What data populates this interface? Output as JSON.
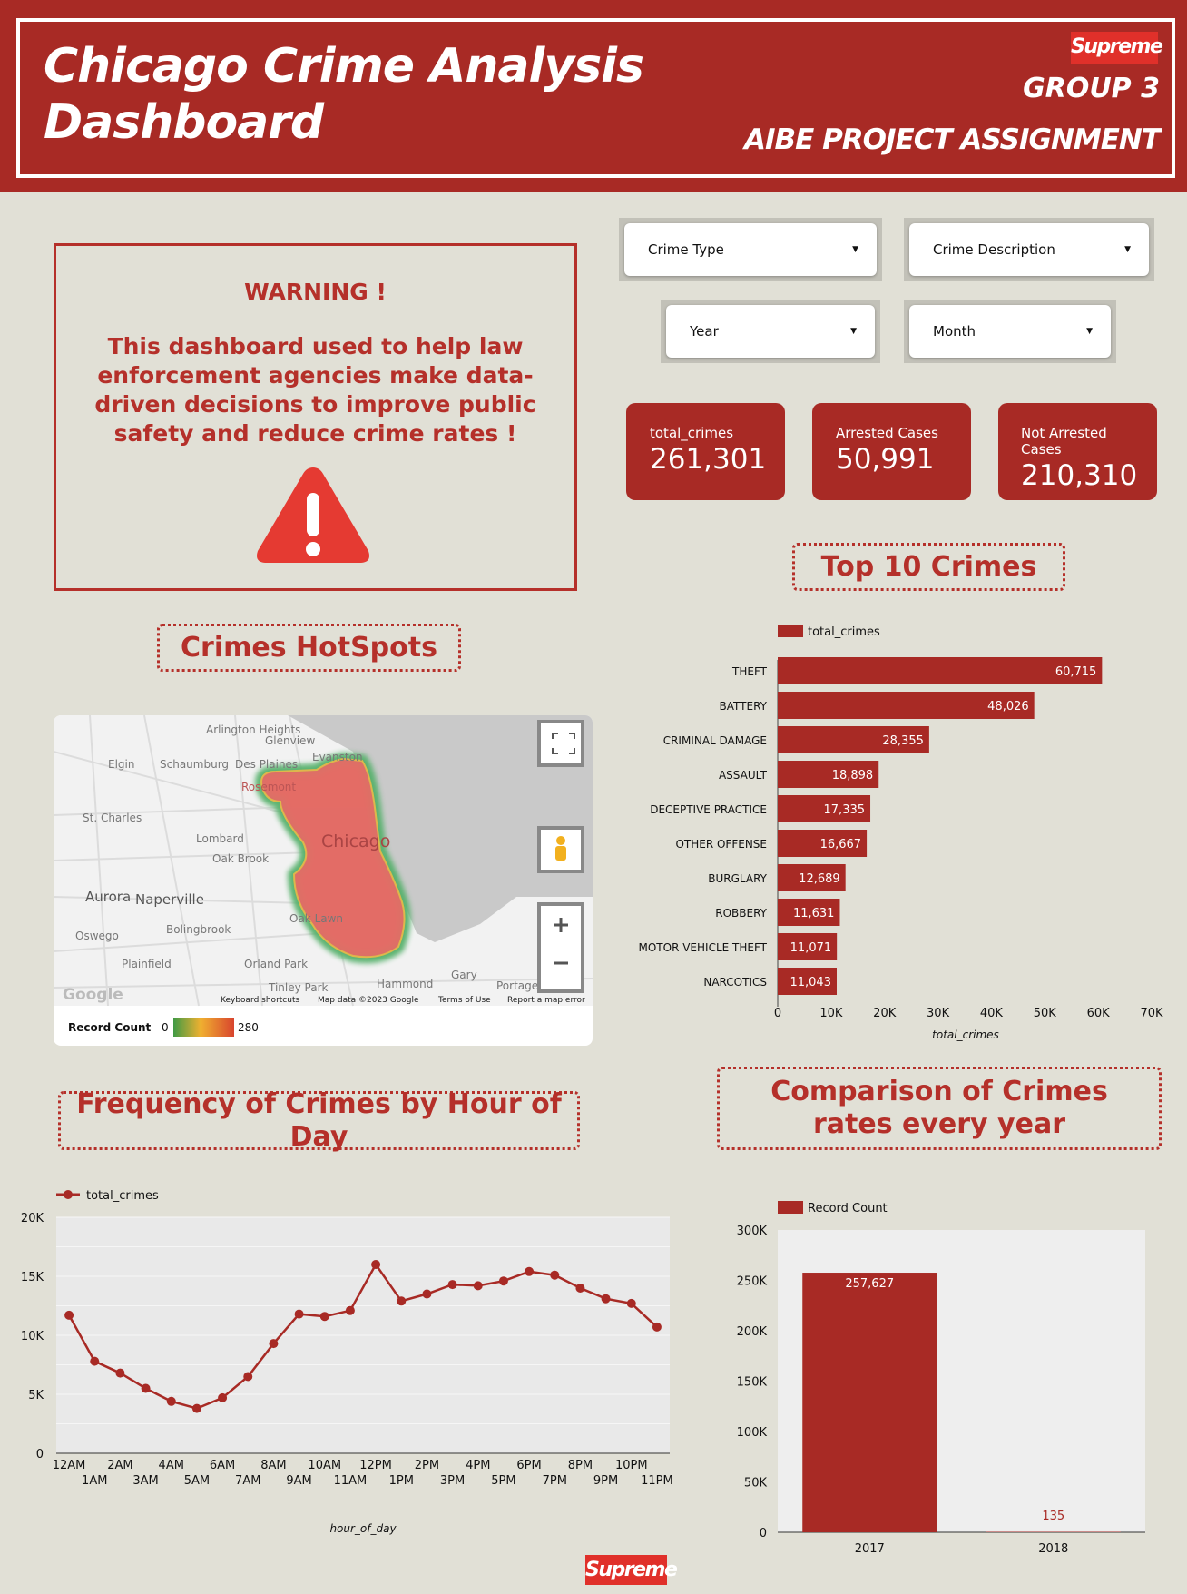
{
  "header": {
    "title_line1": "Chicago Crime Analysis",
    "title_line2": "Dashboard",
    "logo": "Supreme",
    "group": "GROUP 3",
    "subtitle": "AIBE PROJECT ASSIGNMENT"
  },
  "warning": {
    "title": "WARNING !",
    "message": "This dashboard used to help law enforcement agencies make data-driven decisions to improve public safety and reduce crime rates !",
    "icon": "warning-triangle-icon"
  },
  "filters": {
    "crime_type": "Crime Type",
    "crime_description": "Crime Description",
    "year": "Year",
    "month": "Month"
  },
  "kpis": [
    {
      "label": "total_crimes",
      "value": "261,301"
    },
    {
      "label": "Arrested Cases",
      "value": "50,991"
    },
    {
      "label": "Not Arrested Cases",
      "value": "210,310"
    }
  ],
  "sections": {
    "top10": "Top 10 Crimes",
    "hotspots": "Crimes  HotSpots",
    "hourly": "Frequency of Crimes by Hour of Day",
    "yearly": "Comparison of Crimes rates every year"
  },
  "map": {
    "places": [
      "Arlington Heights",
      "Glenview",
      "Elgin",
      "Schaumburg",
      "Des Plaines",
      "Evanston",
      "Rosemont",
      "St. Charles",
      "Lombard",
      "Chicago",
      "Oak Brook",
      "Aurora",
      "Naperville",
      "Oswego",
      "Bolingbrook",
      "Oak Lawn",
      "Plainfield",
      "Orland Park",
      "Tinley Park",
      "Hammond",
      "Gary",
      "Portage"
    ],
    "attribution": [
      "Keyboard shortcuts",
      "Map data ©2023 Google",
      "Terms of Use",
      "Report a map error"
    ],
    "google": "Google",
    "legend": {
      "label": "Record Count",
      "min": "0",
      "max": "280"
    }
  },
  "colors": {
    "brand": "#a82a25",
    "background": "#e1e0d6"
  },
  "chart_data": [
    {
      "type": "bar",
      "orientation": "horizontal",
      "legend": "total_crimes",
      "xlabel": "total_crimes",
      "xlim": [
        0,
        70000
      ],
      "ticks": [
        "0",
        "10K",
        "20K",
        "30K",
        "40K",
        "50K",
        "60K",
        "70K"
      ],
      "categories": [
        "THEFT",
        "BATTERY",
        "CRIMINAL DAMAGE",
        "ASSAULT",
        "DECEPTIVE PRACTICE",
        "OTHER OFFENSE",
        "BURGLARY",
        "ROBBERY",
        "MOTOR VEHICLE THEFT",
        "NARCOTICS"
      ],
      "values": [
        60715,
        48026,
        28355,
        18898,
        17335,
        16667,
        12689,
        11631,
        11071,
        11043
      ],
      "labels": [
        "60,715",
        "48,026",
        "28,355",
        "18,898",
        "17,335",
        "16,667",
        "12,689",
        "11,631",
        "11,071",
        "11,043"
      ]
    },
    {
      "type": "line",
      "legend": "total_crimes",
      "xlabel": "hour_of_day",
      "ylim": [
        0,
        20000
      ],
      "yticks": [
        "0",
        "5K",
        "10K",
        "15K",
        "20K"
      ],
      "categories": [
        "12AM",
        "1AM",
        "2AM",
        "3AM",
        "4AM",
        "5AM",
        "6AM",
        "7AM",
        "8AM",
        "9AM",
        "10AM",
        "11AM",
        "12PM",
        "1PM",
        "2PM",
        "3PM",
        "4PM",
        "5PM",
        "6PM",
        "7PM",
        "8PM",
        "9PM",
        "10PM",
        "11PM"
      ],
      "values": [
        11700,
        7800,
        6800,
        5500,
        4400,
        3800,
        4700,
        6500,
        9300,
        11800,
        11600,
        12100,
        16000,
        12900,
        13500,
        14300,
        14200,
        14600,
        15400,
        15100,
        14000,
        13100,
        12700,
        10700
      ]
    },
    {
      "type": "bar",
      "legend": "Record Count",
      "ylim": [
        0,
        300000
      ],
      "yticks": [
        "0",
        "50K",
        "100K",
        "150K",
        "200K",
        "250K",
        "300K"
      ],
      "categories": [
        "2017",
        "2018"
      ],
      "values": [
        257627,
        135
      ],
      "labels": [
        "257,627",
        "135"
      ]
    }
  ]
}
